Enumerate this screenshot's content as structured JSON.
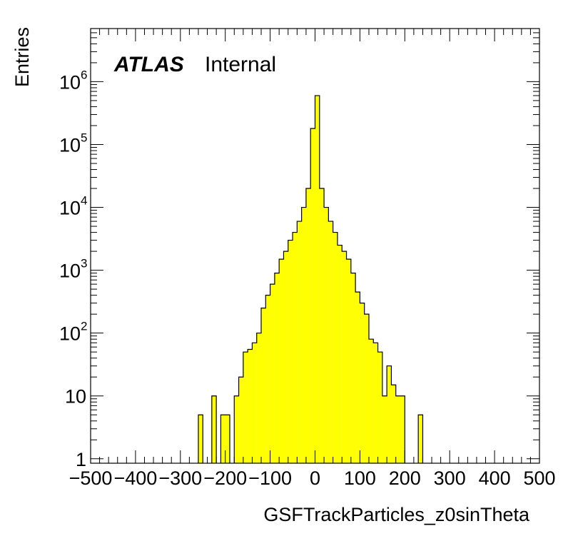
{
  "chart_data": {
    "type": "bar",
    "title": "",
    "xlabel": "GSFTrackParticles_z0sinTheta",
    "ylabel": "Entries",
    "label_atlas": "ATLAS",
    "label_status": "Internal",
    "x_range": [
      -500,
      500
    ],
    "y_range": [
      0.85,
      7000000
    ],
    "y_log": true,
    "grid": false,
    "fill_color": "#ffff00",
    "line_color": "#000000",
    "x_ticks": [
      -500,
      -400,
      -300,
      -200,
      -100,
      0,
      100,
      200,
      300,
      400,
      500
    ],
    "y_ticks": [
      {
        "value": 1,
        "base": "1",
        "exp": ""
      },
      {
        "value": 10,
        "base": "10",
        "exp": ""
      },
      {
        "value": 100,
        "base": "10",
        "exp": "2"
      },
      {
        "value": 1000,
        "base": "10",
        "exp": "3"
      },
      {
        "value": 10000,
        "base": "10",
        "exp": "4"
      },
      {
        "value": 100000,
        "base": "10",
        "exp": "5"
      },
      {
        "value": 1000000,
        "base": "10",
        "exp": "6"
      }
    ],
    "bin_width": 10,
    "bins": [
      {
        "low": -260,
        "count": 5
      },
      {
        "low": -230,
        "count": 10
      },
      {
        "low": -210,
        "count": 5
      },
      {
        "low": -200,
        "count": 5
      },
      {
        "low": -180,
        "count": 10
      },
      {
        "low": -170,
        "count": 20
      },
      {
        "low": -160,
        "count": 50
      },
      {
        "low": -150,
        "count": 55
      },
      {
        "low": -140,
        "count": 70
      },
      {
        "low": -130,
        "count": 100
      },
      {
        "low": -120,
        "count": 250
      },
      {
        "low": -110,
        "count": 400
      },
      {
        "low": -100,
        "count": 600
      },
      {
        "low": -90,
        "count": 900
      },
      {
        "low": -80,
        "count": 1500
      },
      {
        "low": -70,
        "count": 2000
      },
      {
        "low": -60,
        "count": 3000
      },
      {
        "low": -50,
        "count": 4000
      },
      {
        "low": -40,
        "count": 6000
      },
      {
        "low": -30,
        "count": 10000
      },
      {
        "low": -20,
        "count": 20000
      },
      {
        "low": -10,
        "count": 180000
      },
      {
        "low": 0,
        "count": 600000
      },
      {
        "low": 10,
        "count": 20000
      },
      {
        "low": 20,
        "count": 10000
      },
      {
        "low": 30,
        "count": 6000
      },
      {
        "low": 40,
        "count": 4000
      },
      {
        "low": 50,
        "count": 2500
      },
      {
        "low": 60,
        "count": 2000
      },
      {
        "low": 70,
        "count": 1500
      },
      {
        "low": 80,
        "count": 900
      },
      {
        "low": 90,
        "count": 450
      },
      {
        "low": 100,
        "count": 300
      },
      {
        "low": 110,
        "count": 200
      },
      {
        "low": 120,
        "count": 80
      },
      {
        "low": 130,
        "count": 70
      },
      {
        "low": 140,
        "count": 50
      },
      {
        "low": 150,
        "count": 10
      },
      {
        "low": 160,
        "count": 30
      },
      {
        "low": 170,
        "count": 15
      },
      {
        "low": 180,
        "count": 10
      },
      {
        "low": 190,
        "count": 10
      },
      {
        "low": 230,
        "count": 5
      }
    ]
  }
}
